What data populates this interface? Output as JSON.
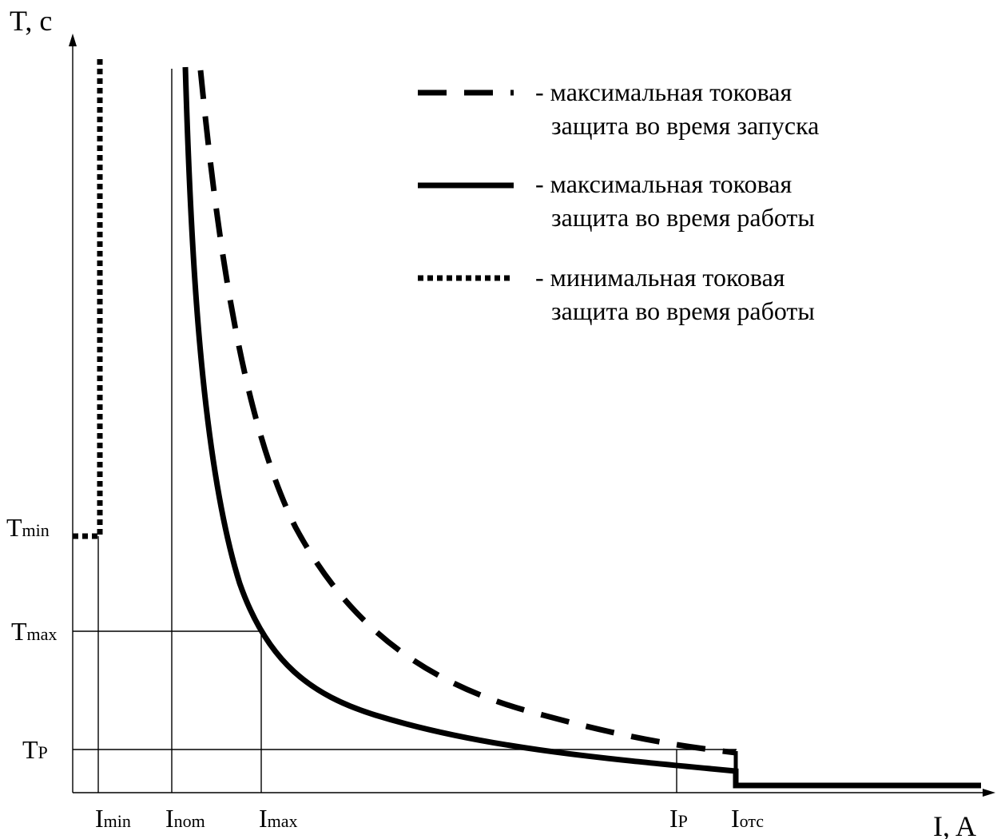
{
  "axes": {
    "y_title": "T, c",
    "x_title": "I, A"
  },
  "x_ticks": [
    {
      "main": "I",
      "sub": "min"
    },
    {
      "main": "I",
      "sub": "nom"
    },
    {
      "main": "I",
      "sub": "max"
    },
    {
      "main": "I",
      "sub": "P"
    },
    {
      "main": "I",
      "sub": "отс"
    }
  ],
  "y_ticks": [
    {
      "main": "T",
      "sub": "min"
    },
    {
      "main": "T",
      "sub": "max"
    },
    {
      "main": "T",
      "sub": "P"
    }
  ],
  "legend": [
    {
      "style": "dashed",
      "line1": "- максимальная токовая",
      "line2": "защита во время запуска"
    },
    {
      "style": "solid",
      "line1": "- максимальная токовая",
      "line2": "защита во время работы"
    },
    {
      "style": "dotted",
      "line1": "- минимальная токовая",
      "line2": "защита во время работы"
    }
  ],
  "colors": {
    "ink": "#000000",
    "background": "#ffffff"
  }
}
